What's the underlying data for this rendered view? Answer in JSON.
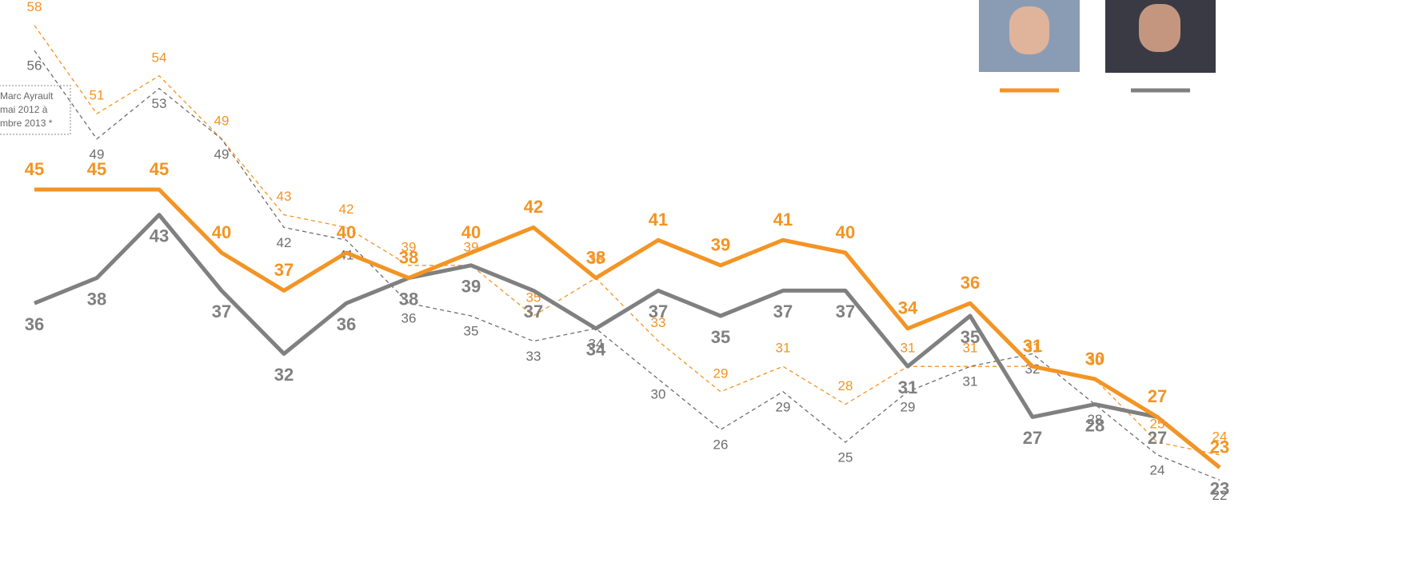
{
  "chart_data": {
    "type": "line",
    "annotation": [
      "Marc Ayrault",
      "mai 2012 à",
      "mbre 2013 *"
    ],
    "ylim": [
      20,
      60
    ],
    "series": [
      {
        "color": "#f39424",
        "style": "dashed",
        "values": [
          58,
          51,
          54,
          49,
          43,
          42,
          39,
          39,
          35,
          38,
          33,
          29,
          31,
          28,
          31,
          31,
          31,
          30,
          25,
          24
        ]
      },
      {
        "color": "#6e6e6e",
        "style": "dashed",
        "values": [
          56,
          49,
          53,
          49,
          42,
          41,
          36,
          35,
          33,
          34,
          30,
          26,
          29,
          25,
          29,
          31,
          32,
          28,
          24,
          22
        ]
      },
      {
        "color": "#808080",
        "style": "solid",
        "values": [
          36,
          38,
          43,
          37,
          32,
          36,
          38,
          39,
          37,
          34,
          37,
          35,
          37,
          37,
          31,
          35,
          27,
          28,
          27,
          23
        ]
      },
      {
        "color": "#f39424",
        "style": "solid",
        "values": [
          45,
          45,
          45,
          40,
          37,
          40,
          38,
          40,
          42,
          38,
          41,
          39,
          41,
          40,
          34,
          36,
          31,
          30,
          27,
          23
        ]
      }
    ]
  }
}
